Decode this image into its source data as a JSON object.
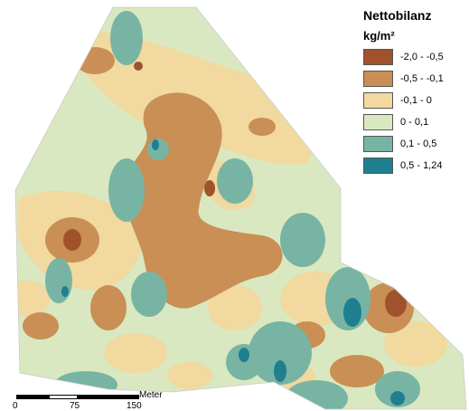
{
  "legend": {
    "title": "Nettobilanz",
    "unit": "kg/m²",
    "classes": [
      {
        "label": "-2,0 - -0,5",
        "color": "#a0522d"
      },
      {
        "label": "-0,5 - -0,1",
        "color": "#c98f55"
      },
      {
        "label": "-0,1 - 0",
        "color": "#f1d9a0"
      },
      {
        "label": "0 - 0,1",
        "color": "#d9e8c0"
      },
      {
        "label": "0,1 - 0,5",
        "color": "#78b4a3"
      },
      {
        "label": "0,5 - 1,24",
        "color": "#1f7f8f"
      }
    ]
  },
  "scale_bar": {
    "unit": "Meter",
    "ticks": [
      "0",
      "75",
      "150"
    ]
  }
}
